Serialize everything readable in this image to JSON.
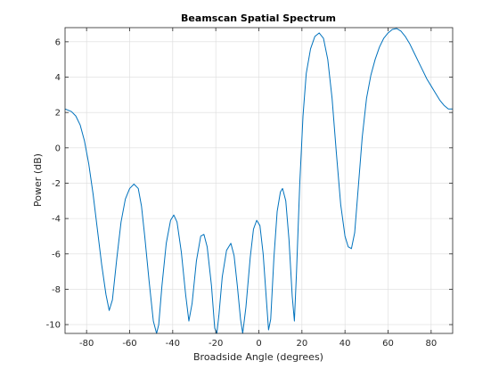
{
  "chart_data": {
    "type": "line",
    "title": "Beamscan Spatial Spectrum",
    "xlabel": "Broadside Angle (degrees)",
    "ylabel": "Power (dB)",
    "xlim": [
      -90,
      90
    ],
    "ylim": [
      -10.5,
      6.8
    ],
    "grid": true,
    "legend": "none",
    "x_ticks": [
      -80,
      -60,
      -40,
      -20,
      0,
      20,
      40,
      60,
      80
    ],
    "y_ticks": [
      -10,
      -8,
      -6,
      -4,
      -2,
      0,
      2,
      4,
      6
    ],
    "series": [
      {
        "color": "#0072bd",
        "points": [
          [
            -90,
            2.2
          ],
          [
            -87,
            2.05
          ],
          [
            -85,
            1.8
          ],
          [
            -83,
            1.3
          ],
          [
            -81,
            0.4
          ],
          [
            -79,
            -0.9
          ],
          [
            -77,
            -2.6
          ],
          [
            -75,
            -4.6
          ],
          [
            -73,
            -6.6
          ],
          [
            -71,
            -8.3
          ],
          [
            -69.5,
            -9.2
          ],
          [
            -68,
            -8.6
          ],
          [
            -66,
            -6.3
          ],
          [
            -64,
            -4.2
          ],
          [
            -62,
            -2.9
          ],
          [
            -60,
            -2.3
          ],
          [
            -58,
            -2.05
          ],
          [
            -56,
            -2.3
          ],
          [
            -54.5,
            -3.3
          ],
          [
            -53,
            -5.0
          ],
          [
            -51,
            -7.5
          ],
          [
            -49,
            -9.8
          ],
          [
            -47.5,
            -10.5
          ],
          [
            -46.5,
            -10.0
          ],
          [
            -45,
            -7.8
          ],
          [
            -43,
            -5.4
          ],
          [
            -41,
            -4.1
          ],
          [
            -39.5,
            -3.8
          ],
          [
            -38,
            -4.2
          ],
          [
            -36,
            -5.9
          ],
          [
            -34,
            -8.3
          ],
          [
            -32.5,
            -9.8
          ],
          [
            -31,
            -8.8
          ],
          [
            -29,
            -6.4
          ],
          [
            -27,
            -5.0
          ],
          [
            -25.5,
            -4.9
          ],
          [
            -24,
            -5.6
          ],
          [
            -22,
            -7.8
          ],
          [
            -20.5,
            -10.2
          ],
          [
            -19.5,
            -10.5
          ],
          [
            -18.5,
            -9.4
          ],
          [
            -17,
            -7.3
          ],
          [
            -15,
            -5.8
          ],
          [
            -13,
            -5.4
          ],
          [
            -11.5,
            -6.1
          ],
          [
            -10,
            -7.8
          ],
          [
            -8.5,
            -9.7
          ],
          [
            -7.5,
            -10.5
          ],
          [
            -6,
            -9.0
          ],
          [
            -4,
            -6.2
          ],
          [
            -2.5,
            -4.6
          ],
          [
            -1,
            -4.1
          ],
          [
            0.5,
            -4.4
          ],
          [
            2,
            -6.0
          ],
          [
            3.5,
            -8.6
          ],
          [
            4.5,
            -10.3
          ],
          [
            5.5,
            -9.7
          ],
          [
            7,
            -6.2
          ],
          [
            8.5,
            -3.6
          ],
          [
            10,
            -2.5
          ],
          [
            11,
            -2.3
          ],
          [
            12.5,
            -3.0
          ],
          [
            14,
            -5.2
          ],
          [
            15.5,
            -8.4
          ],
          [
            16.5,
            -9.8
          ],
          [
            17.5,
            -7.0
          ],
          [
            19,
            -2.0
          ],
          [
            20.5,
            1.8
          ],
          [
            22,
            4.2
          ],
          [
            24,
            5.6
          ],
          [
            26,
            6.3
          ],
          [
            28,
            6.5
          ],
          [
            30,
            6.2
          ],
          [
            32,
            5.0
          ],
          [
            34,
            2.8
          ],
          [
            36,
            -0.3
          ],
          [
            38,
            -3.2
          ],
          [
            40,
            -5.0
          ],
          [
            41.5,
            -5.6
          ],
          [
            43,
            -5.7
          ],
          [
            44.5,
            -4.8
          ],
          [
            46,
            -2.5
          ],
          [
            48,
            0.6
          ],
          [
            50,
            2.8
          ],
          [
            52,
            4.1
          ],
          [
            54,
            5.0
          ],
          [
            56,
            5.7
          ],
          [
            58,
            6.2
          ],
          [
            60,
            6.5
          ],
          [
            62,
            6.7
          ],
          [
            64,
            6.75
          ],
          [
            66,
            6.6
          ],
          [
            68,
            6.3
          ],
          [
            70,
            5.9
          ],
          [
            72,
            5.4
          ],
          [
            74,
            4.9
          ],
          [
            76,
            4.4
          ],
          [
            78,
            3.9
          ],
          [
            80,
            3.5
          ],
          [
            82,
            3.1
          ],
          [
            84,
            2.7
          ],
          [
            86,
            2.4
          ],
          [
            88,
            2.2
          ],
          [
            90,
            2.2
          ]
        ]
      }
    ]
  }
}
